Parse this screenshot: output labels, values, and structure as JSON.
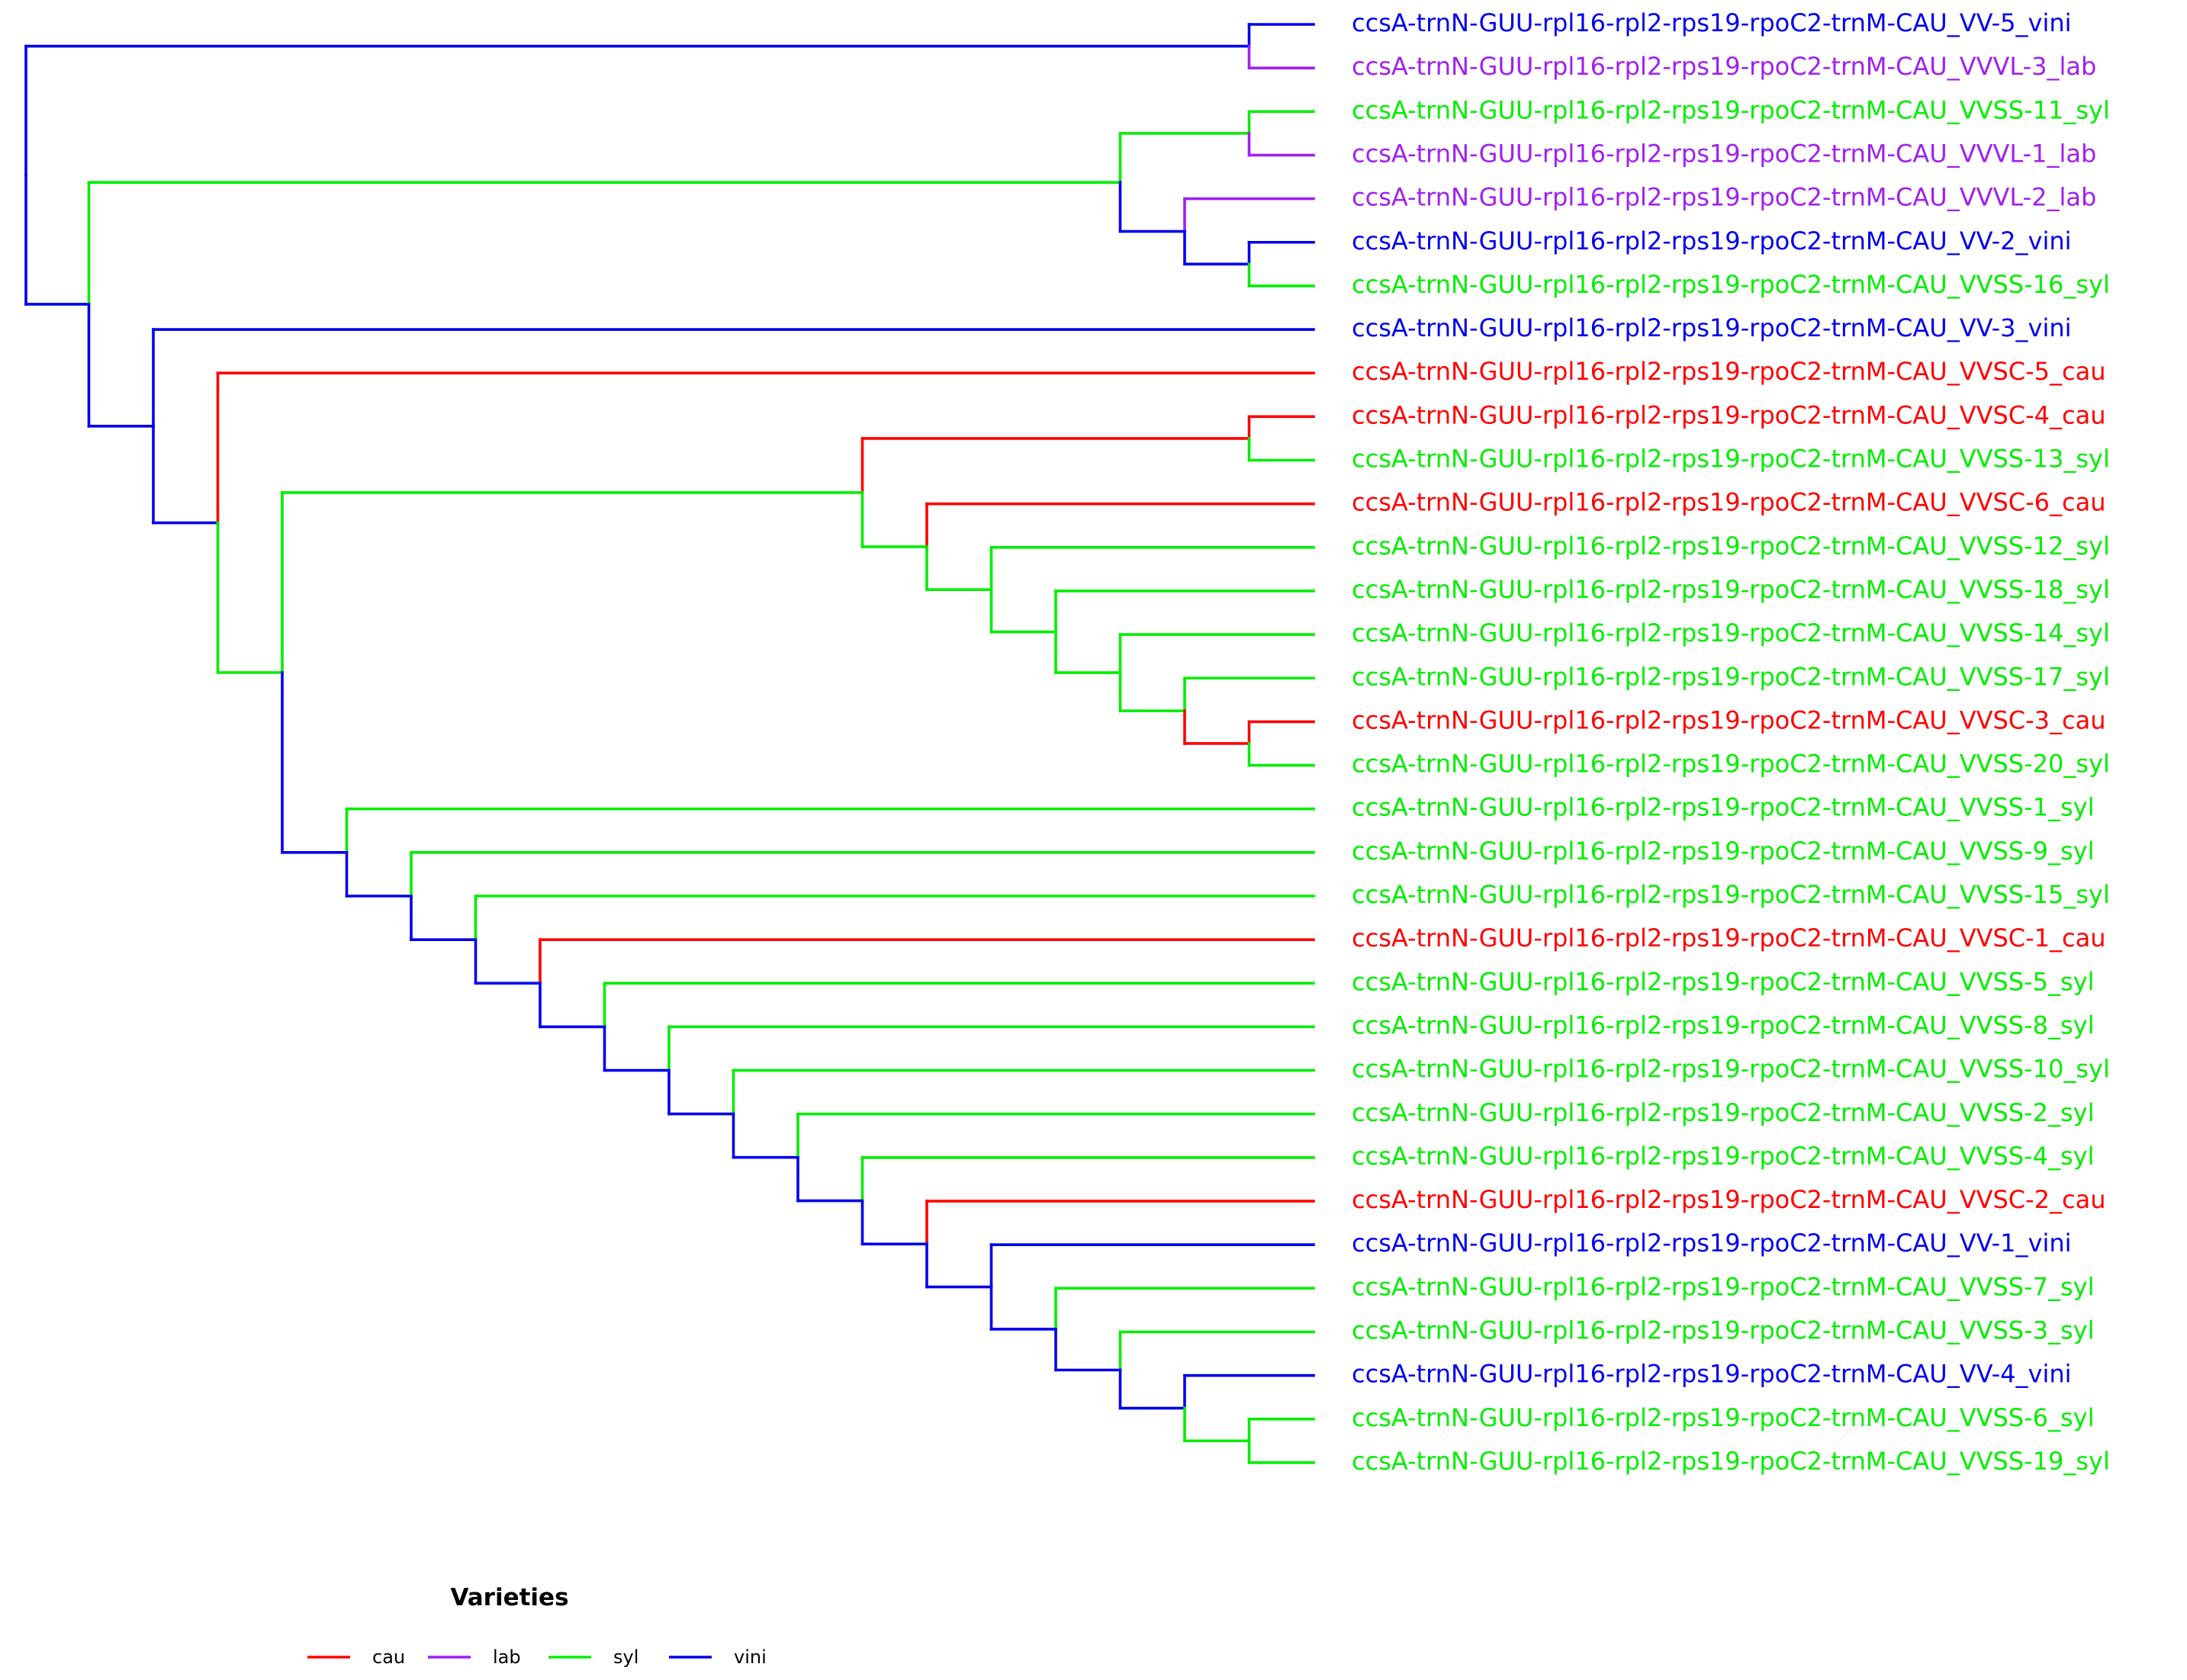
{
  "colors": {
    "cau": "#ff0000",
    "lab": "#a020f0",
    "syl": "#00ee00",
    "vini": "#0000ee"
  },
  "tips": [
    {
      "label": "ccsA-trnN-GUU-rpl16-rpl2-rps19-rpoC2-trnM-CAU_VV-5_vini",
      "group": "vini"
    },
    {
      "label": "ccsA-trnN-GUU-rpl16-rpl2-rps19-rpoC2-trnM-CAU_VVVL-3_lab",
      "group": "lab"
    },
    {
      "label": "ccsA-trnN-GUU-rpl16-rpl2-rps19-rpoC2-trnM-CAU_VVSS-11_syl",
      "group": "syl"
    },
    {
      "label": "ccsA-trnN-GUU-rpl16-rpl2-rps19-rpoC2-trnM-CAU_VVVL-1_lab",
      "group": "lab"
    },
    {
      "label": "ccsA-trnN-GUU-rpl16-rpl2-rps19-rpoC2-trnM-CAU_VVVL-2_lab",
      "group": "lab"
    },
    {
      "label": "ccsA-trnN-GUU-rpl16-rpl2-rps19-rpoC2-trnM-CAU_VV-2_vini",
      "group": "vini"
    },
    {
      "label": "ccsA-trnN-GUU-rpl16-rpl2-rps19-rpoC2-trnM-CAU_VVSS-16_syl",
      "group": "syl"
    },
    {
      "label": "ccsA-trnN-GUU-rpl16-rpl2-rps19-rpoC2-trnM-CAU_VV-3_vini",
      "group": "vini"
    },
    {
      "label": "ccsA-trnN-GUU-rpl16-rpl2-rps19-rpoC2-trnM-CAU_VVSC-5_cau",
      "group": "cau"
    },
    {
      "label": "ccsA-trnN-GUU-rpl16-rpl2-rps19-rpoC2-trnM-CAU_VVSC-4_cau",
      "group": "cau"
    },
    {
      "label": "ccsA-trnN-GUU-rpl16-rpl2-rps19-rpoC2-trnM-CAU_VVSS-13_syl",
      "group": "syl"
    },
    {
      "label": "ccsA-trnN-GUU-rpl16-rpl2-rps19-rpoC2-trnM-CAU_VVSC-6_cau",
      "group": "cau"
    },
    {
      "label": "ccsA-trnN-GUU-rpl16-rpl2-rps19-rpoC2-trnM-CAU_VVSS-12_syl",
      "group": "syl"
    },
    {
      "label": "ccsA-trnN-GUU-rpl16-rpl2-rps19-rpoC2-trnM-CAU_VVSS-18_syl",
      "group": "syl"
    },
    {
      "label": "ccsA-trnN-GUU-rpl16-rpl2-rps19-rpoC2-trnM-CAU_VVSS-14_syl",
      "group": "syl"
    },
    {
      "label": "ccsA-trnN-GUU-rpl16-rpl2-rps19-rpoC2-trnM-CAU_VVSS-17_syl",
      "group": "syl"
    },
    {
      "label": "ccsA-trnN-GUU-rpl16-rpl2-rps19-rpoC2-trnM-CAU_VVSC-3_cau",
      "group": "cau"
    },
    {
      "label": "ccsA-trnN-GUU-rpl16-rpl2-rps19-rpoC2-trnM-CAU_VVSS-20_syl",
      "group": "syl"
    },
    {
      "label": "ccsA-trnN-GUU-rpl16-rpl2-rps19-rpoC2-trnM-CAU_VVSS-1_syl",
      "group": "syl"
    },
    {
      "label": "ccsA-trnN-GUU-rpl16-rpl2-rps19-rpoC2-trnM-CAU_VVSS-9_syl",
      "group": "syl"
    },
    {
      "label": "ccsA-trnN-GUU-rpl16-rpl2-rps19-rpoC2-trnM-CAU_VVSS-15_syl",
      "group": "syl"
    },
    {
      "label": "ccsA-trnN-GUU-rpl16-rpl2-rps19-rpoC2-trnM-CAU_VVSC-1_cau",
      "group": "cau"
    },
    {
      "label": "ccsA-trnN-GUU-rpl16-rpl2-rps19-rpoC2-trnM-CAU_VVSS-5_syl",
      "group": "syl"
    },
    {
      "label": "ccsA-trnN-GUU-rpl16-rpl2-rps19-rpoC2-trnM-CAU_VVSS-8_syl",
      "group": "syl"
    },
    {
      "label": "ccsA-trnN-GUU-rpl16-rpl2-rps19-rpoC2-trnM-CAU_VVSS-10_syl",
      "group": "syl"
    },
    {
      "label": "ccsA-trnN-GUU-rpl16-rpl2-rps19-rpoC2-trnM-CAU_VVSS-2_syl",
      "group": "syl"
    },
    {
      "label": "ccsA-trnN-GUU-rpl16-rpl2-rps19-rpoC2-trnM-CAU_VVSS-4_syl",
      "group": "syl"
    },
    {
      "label": "ccsA-trnN-GUU-rpl16-rpl2-rps19-rpoC2-trnM-CAU_VVSC-2_cau",
      "group": "cau"
    },
    {
      "label": "ccsA-trnN-GUU-rpl16-rpl2-rps19-rpoC2-trnM-CAU_VV-1_vini",
      "group": "vini"
    },
    {
      "label": "ccsA-trnN-GUU-rpl16-rpl2-rps19-rpoC2-trnM-CAU_VVSS-7_syl",
      "group": "syl"
    },
    {
      "label": "ccsA-trnN-GUU-rpl16-rpl2-rps19-rpoC2-trnM-CAU_VVSS-3_syl",
      "group": "syl"
    },
    {
      "label": "ccsA-trnN-GUU-rpl16-rpl2-rps19-rpoC2-trnM-CAU_VV-4_vini",
      "group": "vini"
    },
    {
      "label": "ccsA-trnN-GUU-rpl16-rpl2-rps19-rpoC2-trnM-CAU_VVSS-6_syl",
      "group": "syl"
    },
    {
      "label": "ccsA-trnN-GUU-rpl16-rpl2-rps19-rpoC2-trnM-CAU_VVSS-19_syl",
      "group": "syl"
    }
  ],
  "tree": {
    "g": "vini",
    "c": [
      {
        "g": "vini",
        "c": [
          {
            "t": 0
          },
          {
            "t": 1
          }
        ]
      },
      {
        "g": "vini",
        "c": [
          {
            "g": "syl",
            "c": [
              {
                "g": "syl",
                "c": [
                  {
                    "t": 2
                  },
                  {
                    "t": 3
                  }
                ]
              },
              {
                "g": "vini",
                "c": [
                  {
                    "t": 4
                  },
                  {
                    "g": "vini",
                    "c": [
                      {
                        "t": 5
                      },
                      {
                        "t": 6
                      }
                    ]
                  }
                ]
              }
            ]
          },
          {
            "g": "vini",
            "c": [
              {
                "t": 7
              },
              {
                "g": "vini",
                "c": [
                  {
                    "t": 8
                  },
                  {
                    "g": "syl",
                    "c": [
                      {
                        "g": "syl",
                        "c": [
                          {
                            "g": "cau",
                            "c": [
                              {
                                "t": 9
                              },
                              {
                                "t": 10
                              }
                            ]
                          },
                          {
                            "g": "syl",
                            "c": [
                              {
                                "t": 11
                              },
                              {
                                "g": "syl",
                                "c": [
                                  {
                                    "t": 12
                                  },
                                  {
                                    "g": "syl",
                                    "c": [
                                      {
                                        "t": 13
                                      },
                                      {
                                        "g": "syl",
                                        "c": [
                                          {
                                            "t": 14
                                          },
                                          {
                                            "g": "syl",
                                            "c": [
                                              {
                                                "t": 15
                                              },
                                              {
                                                "g": "cau",
                                                "c": [
                                                  {
                                                    "t": 16
                                                  },
                                                  {
                                                    "t": 17
                                                  }
                                                ]
                                              }
                                            ]
                                          }
                                        ]
                                      }
                                    ]
                                  }
                                ]
                              }
                            ]
                          }
                        ]
                      },
                      {
                        "g": "vini",
                        "c": [
                          {
                            "t": 18
                          },
                          {
                            "g": "vini",
                            "c": [
                              {
                                "t": 19
                              },
                              {
                                "g": "vini",
                                "c": [
                                  {
                                    "t": 20
                                  },
                                  {
                                    "g": "vini",
                                    "c": [
                                      {
                                        "t": 21
                                      },
                                      {
                                        "g": "vini",
                                        "c": [
                                          {
                                            "t": 22
                                          },
                                          {
                                            "g": "vini",
                                            "c": [
                                              {
                                                "t": 23
                                              },
                                              {
                                                "g": "vini",
                                                "c": [
                                                  {
                                                    "t": 24
                                                  },
                                                  {
                                                    "g": "vini",
                                                    "c": [
                                                      {
                                                        "t": 25
                                                      },
                                                      {
                                                        "g": "vini",
                                                        "c": [
                                                          {
                                                            "t": 26
                                                          },
                                                          {
                                                            "g": "vini",
                                                            "c": [
                                                              {
                                                                "t": 27
                                                              },
                                                              {
                                                                "g": "vini",
                                                                "c": [
                                                                  {
                                                                    "t": 28
                                                                  },
                                                                  {
                                                                    "g": "vini",
                                                                    "c": [
                                                                      {
                                                                        "t": 29
                                                                      },
                                                                      {
                                                                        "g": "vini",
                                                                        "c": [
                                                                          {
                                                                            "t": 30
                                                                          },
                                                                          {
                                                                            "g": "vini",
                                                                            "c": [
                                                                              {
                                                                                "t": 31
                                                                              },
                                                                              {
                                                                                "g": "syl",
                                                                                "c": [
                                                                                  {
                                                                                    "t": 32
                                                                                  },
                                                                                  {
                                                                                    "t": 33
                                                                                  }
                                                                                ]
                                                                              }
                                                                            ]
                                                                          }
                                                                        ]
                                                                      }
                                                                    ]
                                                                  }
                                                                ]
                                                              }
                                                            ]
                                                          }
                                                        ]
                                                      }
                                                    ]
                                                  }
                                                ]
                                              }
                                            ]
                                          }
                                        ]
                                      }
                                    ]
                                  }
                                ]
                              }
                            ]
                          }
                        ]
                      }
                    ]
                  }
                ]
              }
            ]
          }
        ]
      }
    ]
  },
  "legend": {
    "title": "Varieties",
    "items": [
      {
        "key": "cau",
        "label": "cau"
      },
      {
        "key": "lab",
        "label": "lab"
      },
      {
        "key": "syl",
        "label": "syl"
      },
      {
        "key": "vini",
        "label": "vini"
      }
    ]
  }
}
